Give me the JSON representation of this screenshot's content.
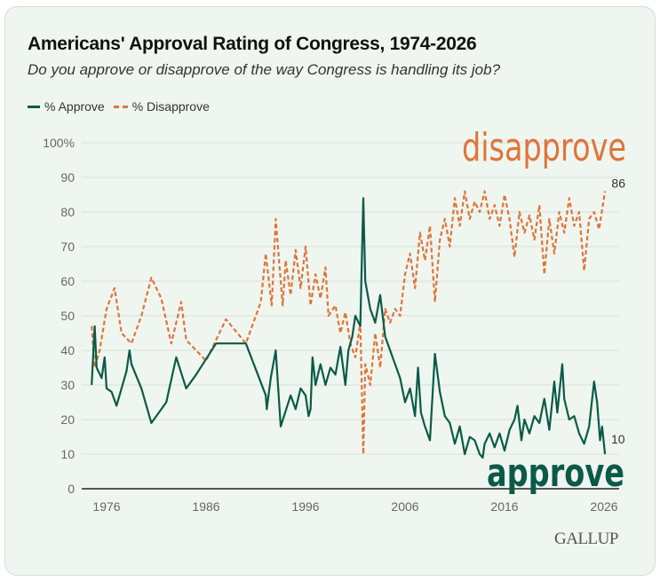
{
  "chart_data": {
    "type": "line",
    "title": "Americans' Approval Rating of Congress, 1974-2026",
    "subtitle": "Do you approve or disapprove of the way Congress is handling its job?",
    "xlim": [
      1974,
      2027
    ],
    "ylim": [
      0,
      100
    ],
    "x_ticks": [
      1976,
      1986,
      1996,
      2006,
      2016,
      2026
    ],
    "y_ticks": [
      0,
      10,
      20,
      30,
      40,
      50,
      60,
      70,
      80,
      90,
      100
    ],
    "y_tick_labels": [
      "0",
      "10",
      "20",
      "30",
      "40",
      "50",
      "60",
      "70",
      "80",
      "90",
      "100%"
    ],
    "grid": true,
    "legend_placement": "top-left",
    "series": [
      {
        "name": "% Approve",
        "color": "#0b5a48",
        "style": "solid",
        "x": [
          1974.5,
          1974.8,
          1975,
          1975.5,
          1975.8,
          1976,
          1976.5,
          1977,
          1977.5,
          1978,
          1978.3,
          1978.5,
          1979.5,
          1980.5,
          1982,
          1983,
          1984,
          1985,
          1987,
          1990,
          1992,
          1992.1,
          1992.5,
          1993,
          1993.5,
          1994.5,
          1995,
          1995.5,
          1996,
          1996.3,
          1996.5,
          1996.7,
          1997,
          1997.5,
          1998,
          1998.5,
          1999,
          1999.5,
          2000,
          2000.3,
          2000.7,
          2001,
          2001.5,
          2001.8,
          2002,
          2002.5,
          2003,
          2003.5,
          2004,
          2004.5,
          2005,
          2005.5,
          2006,
          2006.5,
          2007,
          2007.3,
          2007.6,
          2008,
          2008.5,
          2009,
          2009.5,
          2010,
          2010.5,
          2011,
          2011.5,
          2012,
          2012.5,
          2013,
          2013.5,
          2013.8,
          2014,
          2014.5,
          2015,
          2015.5,
          2016,
          2016.5,
          2017,
          2017.3,
          2017.7,
          2018,
          2018.5,
          2019,
          2019.5,
          2020,
          2020.5,
          2021,
          2021.3,
          2021.8,
          2022,
          2022.5,
          2023,
          2023.5,
          2024,
          2024.5,
          2025,
          2025.3,
          2025.6,
          2025.8,
          2026.1
        ],
        "y": [
          30,
          47,
          35,
          32,
          38,
          29,
          28,
          24,
          29,
          34,
          40,
          36,
          29,
          19,
          25,
          38,
          29,
          33,
          42,
          42,
          27,
          23,
          32,
          40,
          18,
          27,
          23,
          29,
          27,
          21,
          23,
          38,
          30,
          36,
          30,
          35,
          33,
          41,
          30,
          40,
          44,
          50,
          47,
          84,
          60,
          52,
          48,
          56,
          44,
          40,
          36,
          32,
          25,
          29,
          21,
          35,
          22,
          18,
          14,
          39,
          28,
          21,
          19,
          13,
          18,
          10,
          15,
          14,
          10,
          9,
          13,
          16,
          12,
          16,
          11,
          17,
          20,
          24,
          14,
          20,
          16,
          21,
          19,
          26,
          17,
          31,
          22,
          36,
          26,
          20,
          21,
          16,
          13,
          18,
          31,
          25,
          14,
          18,
          10
        ]
      },
      {
        "name": "% Disapprove",
        "color": "#e0743a",
        "style": "dashed",
        "x": [
          1974.5,
          1974.8,
          1975.3,
          1976,
          1976.8,
          1977.5,
          1978.5,
          1979.5,
          1980.5,
          1981.5,
          1982.5,
          1983.5,
          1984,
          1986,
          1987,
          1988,
          1990,
          1991.5,
          1992,
          1992.6,
          1993,
          1993.7,
          1994,
          1994.5,
          1995,
          1995.5,
          1996,
          1996.5,
          1997,
          1997.5,
          1998,
          1998.3,
          1999,
          1999.5,
          2000,
          2000.5,
          2001,
          2001.5,
          2001.8,
          2002,
          2002.5,
          2003,
          2003.5,
          2004,
          2004.5,
          2005,
          2005.5,
          2006,
          2006.5,
          2007,
          2007.5,
          2008,
          2008.5,
          2009,
          2009.5,
          2010,
          2010.5,
          2011,
          2011.5,
          2012,
          2012.5,
          2013,
          2013.5,
          2014,
          2014.5,
          2015,
          2015.5,
          2016,
          2016.5,
          2017,
          2017.5,
          2018,
          2018.5,
          2019,
          2019.5,
          2020,
          2020.5,
          2021,
          2021.5,
          2022,
          2022.5,
          2023,
          2023.5,
          2024,
          2024.5,
          2025,
          2025.5,
          2026.1
        ],
        "y": [
          47,
          35,
          40,
          52,
          58,
          45,
          42,
          50,
          61,
          55,
          42,
          54,
          43,
          37,
          43,
          49,
          42,
          54,
          68,
          53,
          78,
          53,
          66,
          56,
          69,
          58,
          70,
          53,
          62,
          55,
          64,
          50,
          53,
          45,
          51,
          42,
          38,
          48,
          10,
          36,
          30,
          45,
          35,
          52,
          48,
          52,
          50,
          62,
          68,
          58,
          74,
          66,
          76,
          54,
          72,
          78,
          70,
          84,
          76,
          86,
          78,
          83,
          80,
          86,
          78,
          82,
          76,
          85,
          78,
          67,
          80,
          74,
          79,
          72,
          82,
          62,
          78,
          68,
          80,
          74,
          84,
          76,
          80,
          63,
          78,
          80,
          75,
          86
        ]
      }
    ],
    "end_labels": {
      "approve": "10",
      "disapprove": "86"
    },
    "annotations": {
      "disapprove": "disapprove",
      "approve": "approve"
    },
    "legend": [
      "% Approve",
      "% Disapprove"
    ]
  },
  "source_logo": "GALLUP"
}
